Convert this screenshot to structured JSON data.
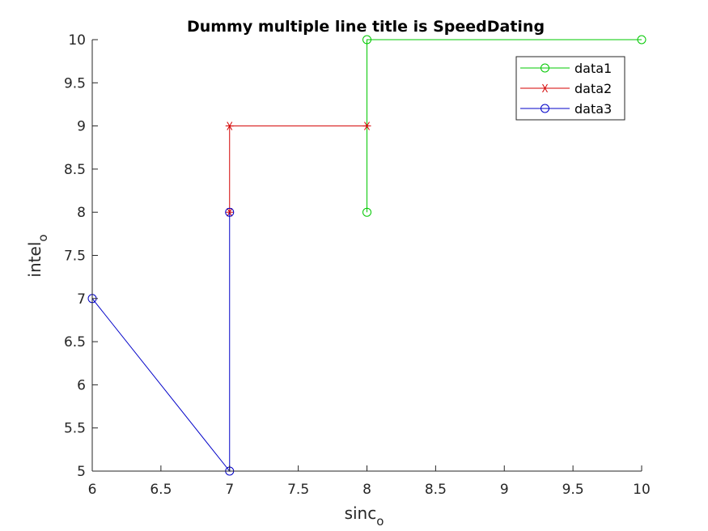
{
  "chart_data": {
    "type": "line",
    "title": "Dummy multiple line title is SpeedDating",
    "xlabel": "sinc",
    "xlabel_sub": "o",
    "ylabel": "intel",
    "ylabel_sub": "o",
    "xlim": [
      6,
      10
    ],
    "ylim": [
      5,
      10
    ],
    "xticks": [
      "6",
      "6.5",
      "7",
      "7.5",
      "8",
      "8.5",
      "9",
      "9.5",
      "10"
    ],
    "yticks": [
      "5",
      "5.5",
      "6",
      "6.5",
      "7",
      "7.5",
      "8",
      "8.5",
      "9",
      "9.5",
      "10"
    ],
    "grid": false,
    "legend_position": "top-right",
    "series": [
      {
        "name": "data1",
        "color": "#00c800",
        "marker": "circle",
        "x": [
          8,
          8,
          10
        ],
        "y": [
          8,
          10,
          10
        ]
      },
      {
        "name": "data2",
        "color": "#d40000",
        "marker": "asterisk",
        "x": [
          7,
          7,
          8
        ],
        "y": [
          8,
          9,
          9
        ]
      },
      {
        "name": "data3",
        "color": "#0000c8",
        "marker": "circle",
        "x": [
          6,
          7,
          7
        ],
        "y": [
          7,
          5,
          8
        ]
      }
    ]
  }
}
